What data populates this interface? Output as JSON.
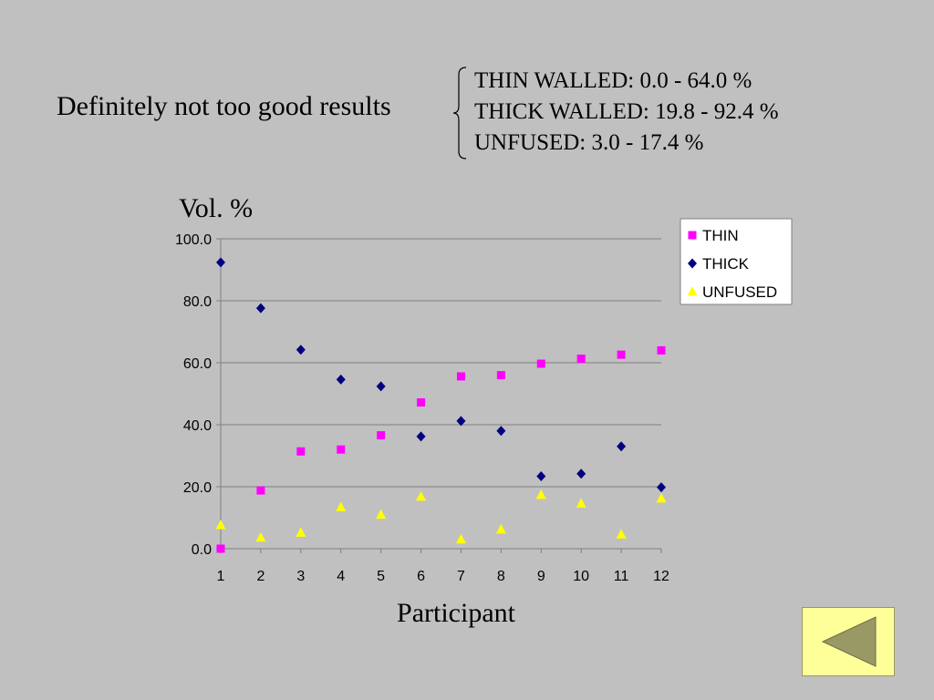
{
  "slide": {
    "headline": "Definitely not too good results",
    "ranges": [
      "THIN WALLED: 0.0 - 64.0 %",
      "THICK WALLED: 19.8 - 92.4 %",
      "UNFUSED: 3.0 - 17.4 %"
    ],
    "back_icon": "left-triangle-back-icon",
    "colors": {
      "background": "#c0c0c0",
      "button_fill": "#ffff99",
      "button_icon": "#999966"
    }
  },
  "chart_data": {
    "type": "scatter",
    "ylabel": "Vol. %",
    "xlabel": "Participant",
    "categories": [
      "1",
      "2",
      "3",
      "4",
      "5",
      "6",
      "7",
      "8",
      "9",
      "10",
      "11",
      "12"
    ],
    "ylim": [
      0,
      100
    ],
    "yticks": [
      "0.0",
      "20.0",
      "40.0",
      "60.0",
      "80.0",
      "100.0"
    ],
    "grid": true,
    "legend_position": "top-right",
    "series": [
      {
        "name": "THIN",
        "marker": "square",
        "color": "#ff00ff",
        "values": [
          0.0,
          18.8,
          31.4,
          32.0,
          36.6,
          47.2,
          55.6,
          56.0,
          59.7,
          61.3,
          62.6,
          64.0
        ]
      },
      {
        "name": "THICK",
        "marker": "diamond",
        "color": "#000080",
        "values": [
          92.4,
          77.6,
          64.2,
          54.6,
          52.4,
          36.2,
          41.2,
          38.0,
          23.4,
          24.2,
          33.0,
          19.8
        ]
      },
      {
        "name": "UNFUSED",
        "marker": "triangle",
        "color": "#ffff00",
        "values": [
          7.6,
          3.6,
          5.2,
          13.4,
          11.0,
          16.8,
          3.0,
          6.2,
          17.4,
          14.6,
          4.6,
          16.2
        ]
      }
    ]
  }
}
